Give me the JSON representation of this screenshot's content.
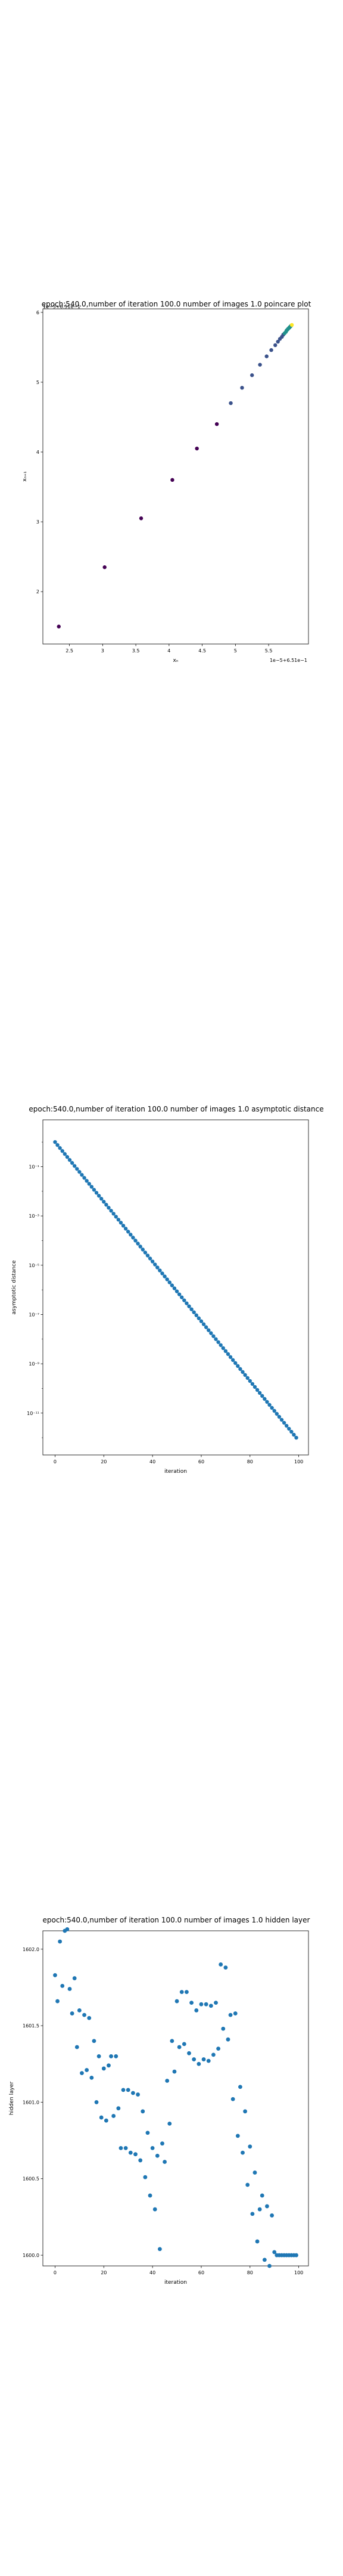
{
  "chart_data": [
    {
      "type": "scatter",
      "title": "epoch:540.0,number of iteration 100.0 number of images 1.0 poincare plot",
      "xlabel": "xₙ",
      "ylabel": "xₙ₊₁",
      "x_offset_label": "1e−5+6.51e−1",
      "y_offset_label": "1e−5+6.51e−1",
      "xlim": [
        2.1,
        6.1
      ],
      "ylim": [
        1.25,
        6.05
      ],
      "xticks": [
        2.5,
        3.0,
        3.5,
        4.0,
        4.5,
        5.0,
        5.5
      ],
      "yticks": [
        2,
        3,
        4,
        5,
        6
      ],
      "colormap": [
        "#440154",
        "#3b528b",
        "#21918c",
        "#5ec962",
        "#fde725"
      ],
      "points": [
        {
          "x": 2.34,
          "y": 1.5
        },
        {
          "x": 3.03,
          "y": 2.35
        },
        {
          "x": 3.58,
          "y": 3.05
        },
        {
          "x": 4.05,
          "y": 3.6
        },
        {
          "x": 4.42,
          "y": 4.05
        },
        {
          "x": 4.72,
          "y": 4.4
        },
        {
          "x": 4.93,
          "y": 4.7
        },
        {
          "x": 5.1,
          "y": 4.92
        },
        {
          "x": 5.25,
          "y": 5.1
        },
        {
          "x": 5.37,
          "y": 5.25
        },
        {
          "x": 5.47,
          "y": 5.37
        },
        {
          "x": 5.54,
          "y": 5.46
        },
        {
          "x": 5.6,
          "y": 5.53
        },
        {
          "x": 5.64,
          "y": 5.58
        },
        {
          "x": 5.67,
          "y": 5.62
        },
        {
          "x": 5.7,
          "y": 5.65
        },
        {
          "x": 5.72,
          "y": 5.68
        },
        {
          "x": 5.74,
          "y": 5.7
        },
        {
          "x": 5.76,
          "y": 5.72
        },
        {
          "x": 5.77,
          "y": 5.74
        },
        {
          "x": 5.78,
          "y": 5.75
        },
        {
          "x": 5.79,
          "y": 5.76
        },
        {
          "x": 5.8,
          "y": 5.77
        },
        {
          "x": 5.81,
          "y": 5.78
        },
        {
          "x": 5.82,
          "y": 5.79
        },
        {
          "x": 5.83,
          "y": 5.8
        },
        {
          "x": 5.84,
          "y": 5.81
        },
        {
          "x": 5.85,
          "y": 5.82
        }
      ]
    },
    {
      "type": "scatter",
      "title": "epoch:540.0,number of iteration 100.0  number of images 1.0 asymptotic distance",
      "xlabel": "iteration",
      "ylabel": "asymptotic distance",
      "log_y": true,
      "xlim": [
        -5,
        104
      ],
      "ylim_log10": [
        -12.7,
        0.9
      ],
      "xticks": [
        0,
        20,
        40,
        60,
        80,
        100
      ],
      "yticks": [
        {
          "exp": -1,
          "label": "10⁻¹"
        },
        {
          "exp": -3,
          "label": "10⁻³"
        },
        {
          "exp": -5,
          "label": "10⁻⁵"
        },
        {
          "exp": -7,
          "label": "10⁻⁷"
        },
        {
          "exp": -9,
          "label": "10⁻⁹"
        },
        {
          "exp": -11,
          "label": "10⁻¹¹"
        }
      ],
      "x_range": [
        0,
        99
      ],
      "log10_y_range": [
        0.0,
        -12.0
      ],
      "color": "#1f77b4"
    },
    {
      "type": "scatter",
      "title": "epoch:540.0,number of iteration 100.0  number of images 1.0 hidden layer",
      "xlabel": "iteration",
      "ylabel": "hidden layer",
      "xlim": [
        -5,
        104
      ],
      "ylim": [
        1599.93,
        1602.12
      ],
      "xticks": [
        0,
        20,
        40,
        60,
        80,
        100
      ],
      "yticks": [
        {
          "v": 1600.0,
          "label": "1600.0"
        },
        {
          "v": 1600.5,
          "label": "1600.5"
        },
        {
          "v": 1601.0,
          "label": "1601.0"
        },
        {
          "v": 1601.5,
          "label": "1601.5"
        },
        {
          "v": 1602.0,
          "label": "1602.0"
        }
      ],
      "color": "#1f77b4",
      "x": [
        0,
        1,
        2,
        3,
        4,
        5,
        6,
        7,
        8,
        9,
        10,
        11,
        12,
        13,
        14,
        15,
        16,
        17,
        18,
        19,
        20,
        21,
        22,
        23,
        24,
        25,
        26,
        27,
        28,
        29,
        30,
        31,
        32,
        33,
        34,
        35,
        36,
        37,
        38,
        39,
        40,
        41,
        42,
        43,
        44,
        45,
        46,
        47,
        48,
        49,
        50,
        51,
        52,
        53,
        54,
        55,
        56,
        57,
        58,
        59,
        60,
        61,
        62,
        63,
        64,
        65,
        66,
        67,
        68,
        69,
        70,
        71,
        72,
        73,
        74,
        75,
        76,
        77,
        78,
        79,
        80,
        81,
        82,
        83,
        84,
        85,
        86,
        87,
        88,
        89,
        90,
        91,
        92,
        93,
        94,
        95,
        96,
        97,
        98,
        99
      ],
      "y": [
        1601.83,
        1601.66,
        1602.05,
        1601.76,
        1602.12,
        1602.13,
        1601.74,
        1601.58,
        1601.81,
        1601.36,
        1601.6,
        1601.19,
        1601.57,
        1601.21,
        1601.55,
        1601.16,
        1601.4,
        1601.0,
        1601.3,
        1600.9,
        1601.22,
        1600.88,
        1601.24,
        1601.3,
        1600.91,
        1601.3,
        1600.96,
        1600.7,
        1601.08,
        1600.7,
        1601.08,
        1600.67,
        1601.06,
        1600.66,
        1601.05,
        1600.62,
        1600.94,
        1600.51,
        1600.8,
        1600.39,
        1600.7,
        1600.3,
        1600.65,
        1600.04,
        1600.73,
        1600.61,
        1601.14,
        1600.86,
        1601.4,
        1601.2,
        1601.66,
        1601.36,
        1601.72,
        1601.38,
        1601.72,
        1601.32,
        1601.65,
        1601.28,
        1601.6,
        1601.25,
        1601.64,
        1601.28,
        1601.64,
        1601.27,
        1601.63,
        1601.31,
        1601.65,
        1601.35,
        1601.9,
        1601.48,
        1601.88,
        1601.41,
        1601.57,
        1601.02,
        1601.58,
        1600.78,
        1601.1,
        1600.67,
        1600.94,
        1600.46,
        1600.71,
        1600.27,
        1600.54,
        1600.09,
        1600.3,
        1600.39,
        1599.97,
        1600.32,
        1599.93,
        1600.26,
        1600.02,
        1600.0,
        1600.0,
        1600.0,
        1600.0,
        1600.0,
        1600.0,
        1600.0,
        1600.0,
        1600.0
      ]
    }
  ]
}
